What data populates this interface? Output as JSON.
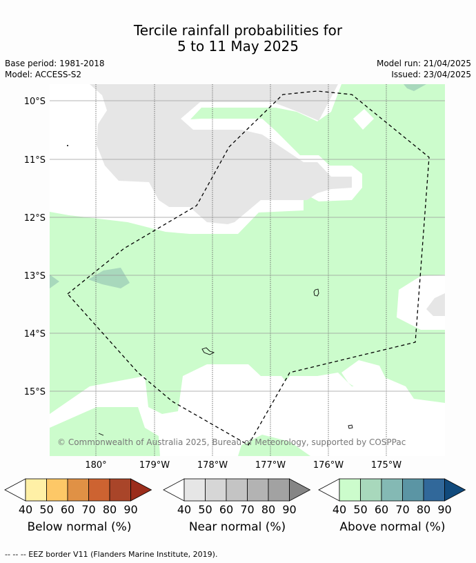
{
  "header": {
    "title_line1": "Tercile rainfall probabilities for",
    "title_line2": "5 to 11 May 2025",
    "base_period": "Base period: 1981-2018",
    "model": "Model: ACCESS-S2",
    "model_run": "Model run: 21/04/2025",
    "issued": "Issued: 23/04/2025"
  },
  "map": {
    "lat_labels": [
      "10°S",
      "11°S",
      "12°S",
      "13°S",
      "14°S",
      "15°S"
    ],
    "lon_labels": [
      "180°",
      "179°W",
      "178°W",
      "177°W",
      "176°W",
      "175°W"
    ],
    "copyright": "© Commonwealth of Australia 2025, Bureau of Meteorology, supported by COSPPac",
    "colors": {
      "near_normal_40": "#e6e6e6",
      "above_normal_40": "#ccfccc",
      "above_normal_50": "#a8d8bc",
      "background": "#ffffff",
      "eez_border": "#000000"
    }
  },
  "legends": [
    {
      "title": "Below normal (%)",
      "ticks": [
        "40",
        "50",
        "60",
        "70",
        "80",
        "90"
      ],
      "colors": [
        "#fff0a6",
        "#fdc867",
        "#e09145",
        "#cd6331",
        "#a94529",
        "#9b2d1b"
      ]
    },
    {
      "title": "Near normal (%)",
      "ticks": [
        "40",
        "50",
        "60",
        "70",
        "80",
        "90"
      ],
      "colors": [
        "#e6e6e6",
        "#d6d6d6",
        "#c4c4c4",
        "#b3b3b3",
        "#a2a2a2",
        "#858585"
      ]
    },
    {
      "title": "Above normal (%)",
      "ticks": [
        "40",
        "50",
        "60",
        "70",
        "80",
        "90"
      ],
      "colors": [
        "#ccfccc",
        "#a8d8bc",
        "#84b9b4",
        "#5b95a4",
        "#31689a",
        "#114a7c"
      ]
    }
  ],
  "footnote": "--  --  -- EEZ border V11 (Flanders Marine Institute, 2019)."
}
